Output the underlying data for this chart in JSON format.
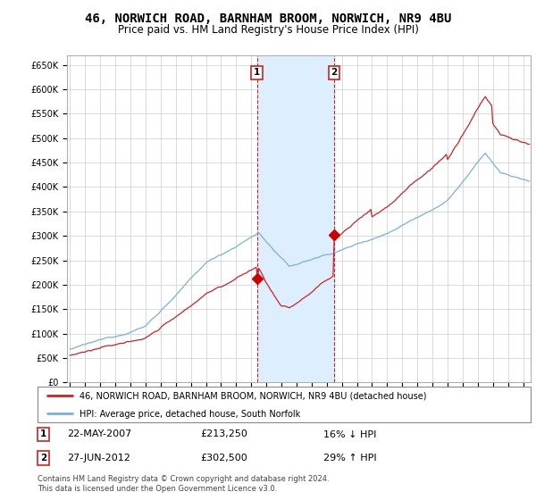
{
  "title": "46, NORWICH ROAD, BARNHAM BROOM, NORWICH, NR9 4BU",
  "subtitle": "Price paid vs. HM Land Registry's House Price Index (HPI)",
  "title_fontsize": 10,
  "subtitle_fontsize": 8.5,
  "background_color": "#ffffff",
  "plot_bg_color": "#ffffff",
  "grid_color": "#cccccc",
  "ylabel_values": [
    "£0",
    "£50K",
    "£100K",
    "£150K",
    "£200K",
    "£250K",
    "£300K",
    "£350K",
    "£400K",
    "£450K",
    "£500K",
    "£550K",
    "£600K",
    "£650K"
  ],
  "ytick_values": [
    0,
    50000,
    100000,
    150000,
    200000,
    250000,
    300000,
    350000,
    400000,
    450000,
    500000,
    550000,
    600000,
    650000
  ],
  "ylim": [
    0,
    670000
  ],
  "xlim_start": 1994.8,
  "xlim_end": 2025.5,
  "sale1_year": 2007.38,
  "sale1_price": 213250,
  "sale2_year": 2012.49,
  "sale2_price": 302500,
  "highlight_color": "#ddeeff",
  "sale_marker_color": "#cc0000",
  "hpi_line_color": "#7bb0d8",
  "price_line_color": "#cc2222",
  "legend_line1": "46, NORWICH ROAD, BARNHAM BROOM, NORWICH, NR9 4BU (detached house)",
  "legend_line2": "HPI: Average price, detached house, South Norfolk",
  "footer1": "Contains HM Land Registry data © Crown copyright and database right 2024.",
  "footer2": "This data is licensed under the Open Government Licence v3.0.",
  "table_row1_date": "22-MAY-2007",
  "table_row1_price": "£213,250",
  "table_row1_hpi": "16% ↓ HPI",
  "table_row2_date": "27-JUN-2012",
  "table_row2_price": "£302,500",
  "table_row2_hpi": "29% ↑ HPI"
}
